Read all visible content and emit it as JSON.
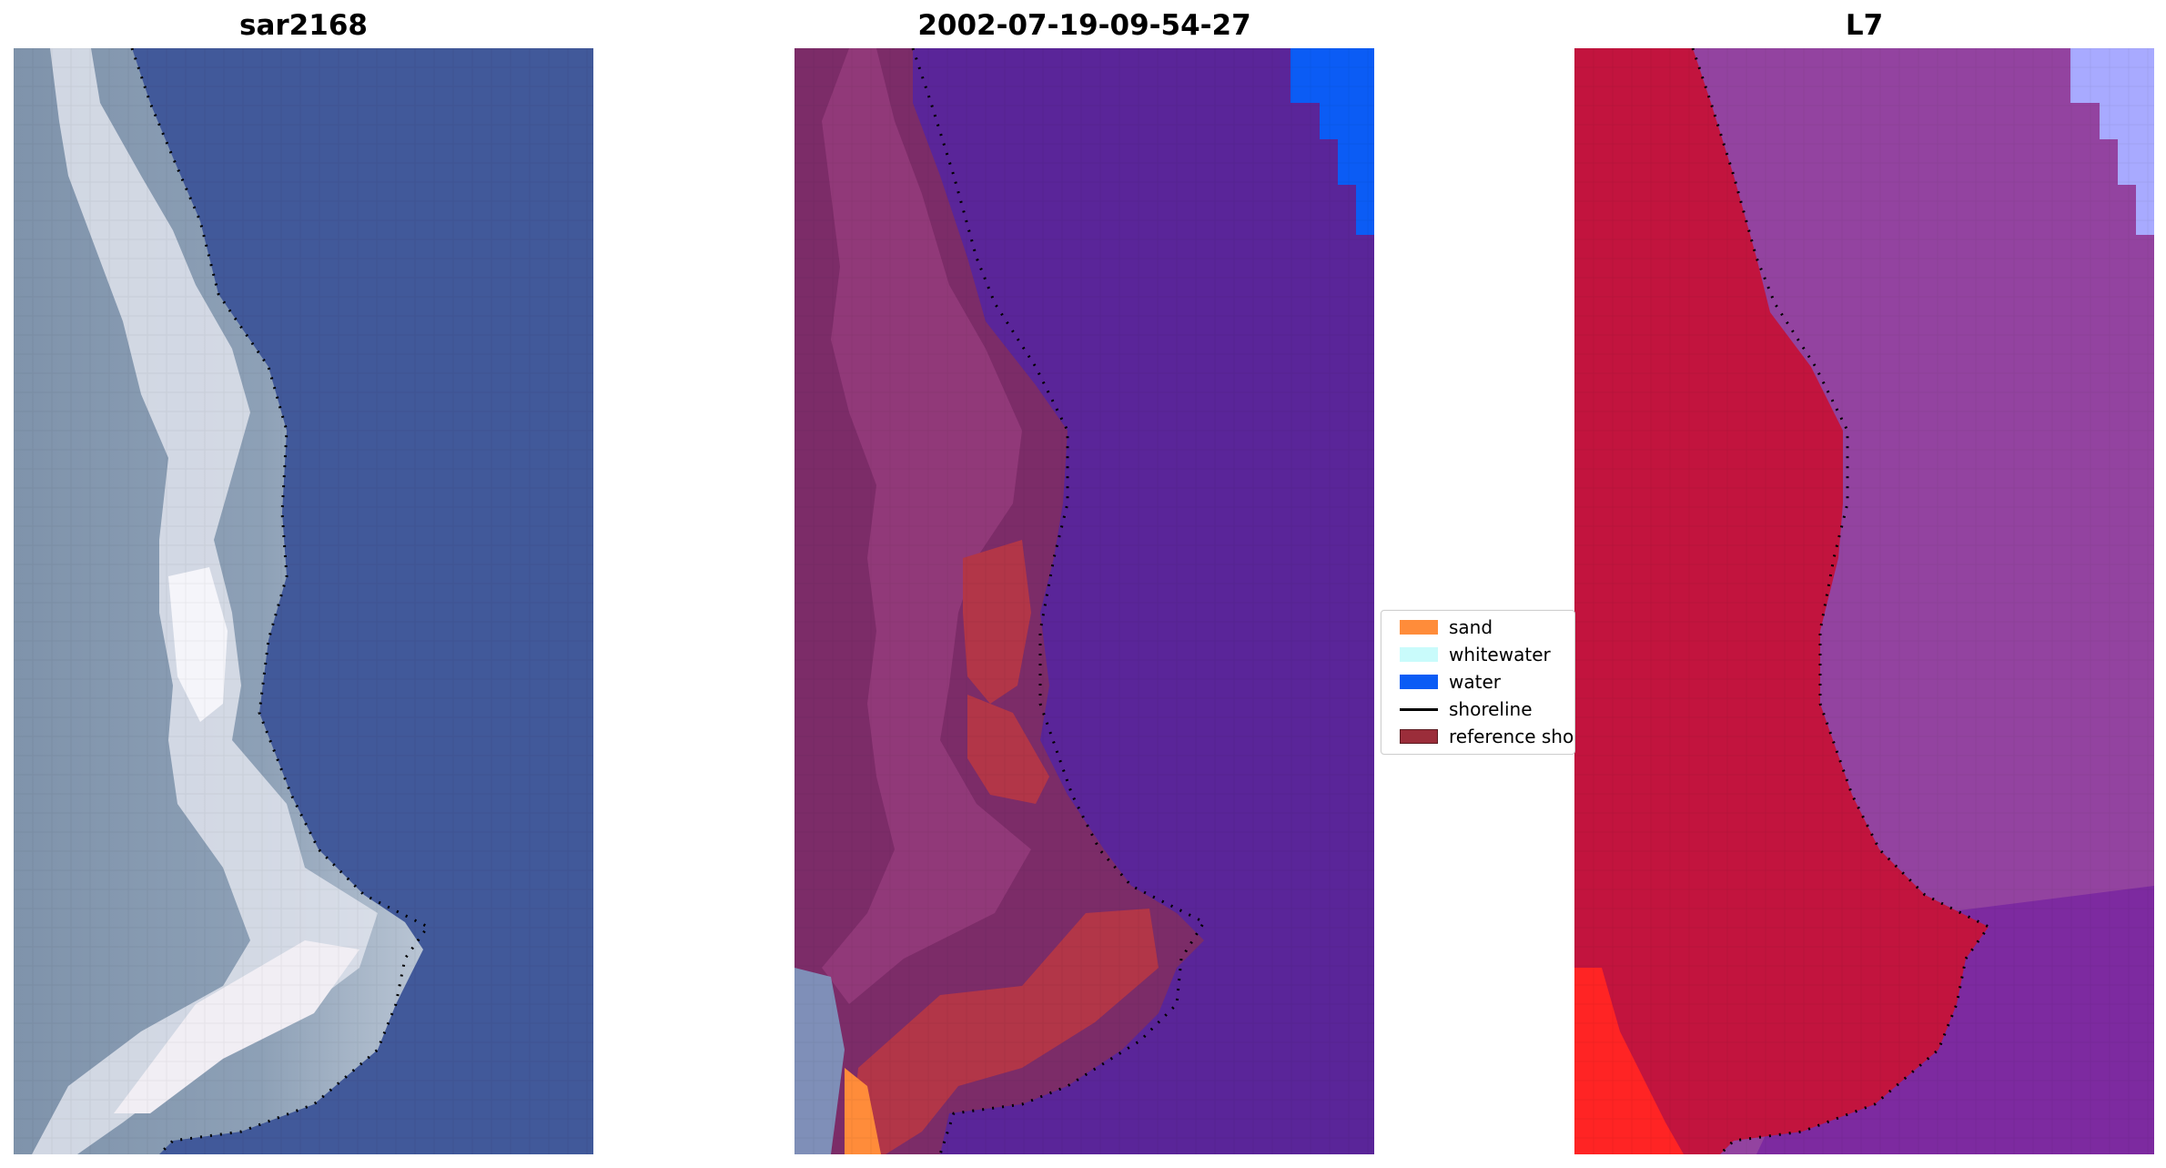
{
  "panels": [
    {
      "title": "sar2168",
      "id": "rgb"
    },
    {
      "title": "2002-07-19-09-54-27",
      "id": "classified"
    },
    {
      "title": "L7",
      "id": "index"
    }
  ],
  "legend": {
    "items": [
      {
        "label": "sand",
        "kind": "patch",
        "color": "#ff8c3a"
      },
      {
        "label": "whitewater",
        "kind": "patch",
        "color": "#c9fbfb"
      },
      {
        "label": "water",
        "kind": "patch",
        "color": "#0b5cf5"
      },
      {
        "label": "shoreline",
        "kind": "line",
        "color": "#000000"
      },
      {
        "label": "reference sho",
        "kind": "patch",
        "color": "#9b2d3a"
      }
    ]
  },
  "colors": {
    "sea_rgb": "#3f5a9a",
    "land_rgb": "#7c8fa8",
    "bright_rgb": "#e8e4ee",
    "class_water": "#5a2599",
    "class_land": "#7a2a64",
    "class_reference": "#b33548",
    "class_sand": "#ff8c3a",
    "class_water_blue": "#0b5cf5",
    "index_land": "#c0143e",
    "index_sea": "#8e3fa0",
    "index_bright_water": "#a8aaff",
    "index_red": "#ff2020"
  }
}
